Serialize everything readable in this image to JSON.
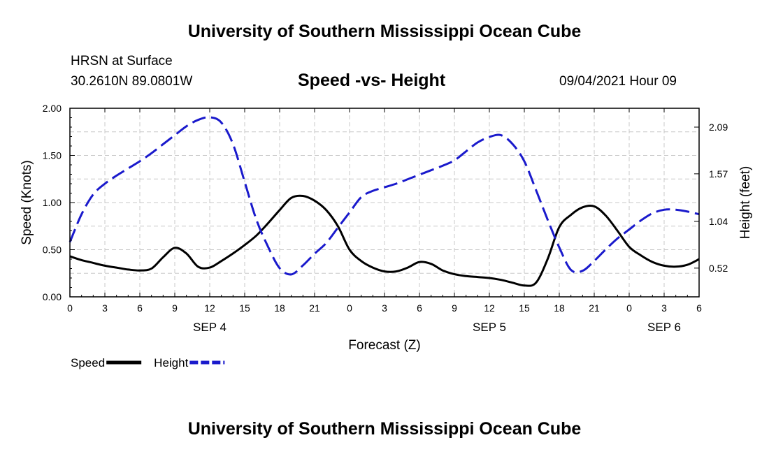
{
  "page": {
    "top_title": "University of Southern Mississippi Ocean Cube",
    "bottom_title": "University of Southern Mississippi Ocean Cube",
    "station": "HRSN at Surface",
    "coords": "30.2610N  89.0801W",
    "chart_title": "Speed -vs- Height",
    "datetime": "09/04/2021 Hour 09"
  },
  "chart_data": {
    "type": "line",
    "title": "Speed -vs- Height",
    "xlabel": "Forecast (Z)",
    "ylabel_left": "Speed (Knots)",
    "ylabel_right": "Height (feet)",
    "x_hours": [
      0,
      1,
      2,
      3,
      4,
      5,
      6,
      7,
      8,
      9,
      10,
      11,
      12,
      13,
      14,
      15,
      16,
      17,
      18,
      19,
      20,
      21,
      22,
      23,
      24,
      25,
      26,
      27,
      28,
      29,
      30,
      31,
      32,
      33,
      34,
      35,
      36,
      37,
      38,
      39,
      40,
      41,
      42,
      43,
      44,
      45,
      46,
      47,
      48,
      49,
      50,
      51,
      52,
      53,
      54
    ],
    "x_ticks": [
      0,
      3,
      6,
      9,
      12,
      15,
      18,
      21,
      24,
      27,
      30,
      33,
      36,
      39,
      42,
      45,
      48,
      51,
      54
    ],
    "x_tick_labels": [
      "0",
      "3",
      "6",
      "9",
      "12",
      "15",
      "18",
      "21",
      "0",
      "3",
      "6",
      "9",
      "12",
      "15",
      "18",
      "21",
      "0",
      "3",
      "6"
    ],
    "day_labels": [
      {
        "label": "SEP 4",
        "hour": 12
      },
      {
        "label": "SEP 5",
        "hour": 36
      },
      {
        "label": "SEP 6",
        "hour": 51
      }
    ],
    "ylim_left": [
      0,
      2.0
    ],
    "left_ticks": [
      0,
      0.5,
      1.0,
      1.5,
      2.0
    ],
    "left_tick_labels": [
      "0.00",
      "0.50",
      "1.00",
      "1.50",
      "2.00"
    ],
    "ylim_right": [
      0.2,
      2.3
    ],
    "right_ticks": [
      0.52,
      1.04,
      1.57,
      2.09
    ],
    "right_tick_labels": [
      "0.52",
      "1.04",
      "1.57",
      "2.09"
    ],
    "grid": true,
    "series": [
      {
        "name": "Speed",
        "axis": "left",
        "color": "#000000",
        "dash": "solid",
        "values": [
          0.43,
          0.39,
          0.36,
          0.33,
          0.31,
          0.29,
          0.28,
          0.3,
          0.42,
          0.52,
          0.46,
          0.32,
          0.31,
          0.38,
          0.46,
          0.55,
          0.65,
          0.78,
          0.92,
          1.05,
          1.07,
          1.02,
          0.92,
          0.75,
          0.5,
          0.38,
          0.31,
          0.27,
          0.27,
          0.31,
          0.37,
          0.35,
          0.28,
          0.24,
          0.22,
          0.21,
          0.2,
          0.18,
          0.15,
          0.12,
          0.15,
          0.4,
          0.74,
          0.87,
          0.95,
          0.96,
          0.86,
          0.7,
          0.53,
          0.44,
          0.37,
          0.33,
          0.32,
          0.34,
          0.4
        ]
      },
      {
        "name": "Height",
        "axis": "right",
        "color": "#1a1acc",
        "dash": "dashed",
        "values": [
          0.81,
          1.12,
          1.34,
          1.46,
          1.55,
          1.63,
          1.71,
          1.8,
          1.9,
          2.0,
          2.1,
          2.17,
          2.2,
          2.14,
          1.9,
          1.48,
          1.06,
          0.76,
          0.52,
          0.45,
          0.55,
          0.68,
          0.8,
          0.97,
          1.14,
          1.31,
          1.38,
          1.42,
          1.46,
          1.51,
          1.56,
          1.61,
          1.66,
          1.72,
          1.82,
          1.92,
          1.98,
          2.0,
          1.9,
          1.71,
          1.39,
          1.06,
          0.75,
          0.5,
          0.49,
          0.6,
          0.73,
          0.85,
          0.95,
          1.05,
          1.13,
          1.17,
          1.17,
          1.15,
          1.12
        ]
      }
    ],
    "legend": {
      "position": "bottom-left",
      "entries": [
        {
          "label": "Speed",
          "color": "#000000",
          "dash": "solid"
        },
        {
          "label": "Height",
          "color": "#1a1acc",
          "dash": "dashed"
        }
      ]
    }
  }
}
